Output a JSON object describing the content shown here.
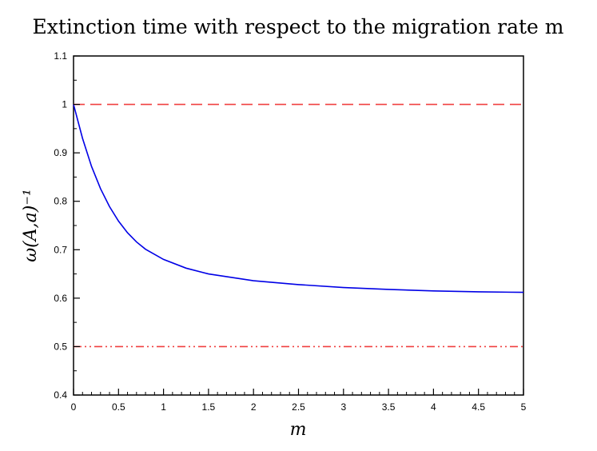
{
  "chart_data": {
    "type": "line",
    "title": "Extinction time with respect to the migration rate m",
    "xlabel": "m",
    "ylabel": "ω(A,a)⁻¹",
    "xlim": [
      0,
      5
    ],
    "ylim": [
      0.4,
      1.1
    ],
    "x_ticks": [
      0,
      0.5,
      1,
      1.5,
      2,
      2.5,
      3,
      3.5,
      4,
      4.5,
      5
    ],
    "x_tick_labels": [
      "0",
      "0.5",
      "1",
      "1.5",
      "2",
      "2.5",
      "3",
      "3.5",
      "4",
      "4.5",
      "5"
    ],
    "y_ticks": [
      0.4,
      0.5,
      0.6,
      0.7,
      0.8,
      0.9,
      1.0,
      1.1
    ],
    "y_tick_labels": [
      "0.4",
      "0.5",
      "0.6",
      "0.7",
      "0.8",
      "0.9",
      "1",
      "1.1"
    ],
    "grid": false,
    "series": [
      {
        "color": "#0000e6",
        "style": "solid",
        "x": [
          0,
          0.1,
          0.2,
          0.3,
          0.4,
          0.5,
          0.6,
          0.7,
          0.8,
          1.0,
          1.25,
          1.5,
          2.0,
          2.5,
          3.0,
          3.5,
          4.0,
          4.5,
          5.0
        ],
        "y": [
          1.0,
          0.93,
          0.872,
          0.826,
          0.789,
          0.759,
          0.735,
          0.716,
          0.701,
          0.68,
          0.662,
          0.65,
          0.636,
          0.628,
          0.622,
          0.618,
          0.615,
          0.613,
          0.612
        ]
      },
      {
        "color": "#f04040",
        "style": "dashed",
        "x": [
          0,
          5
        ],
        "y": [
          1.0,
          1.0
        ]
      },
      {
        "color": "#f04040",
        "style": "dash-dot-dot",
        "x": [
          0,
          5
        ],
        "y": [
          0.5,
          0.5
        ]
      }
    ]
  }
}
